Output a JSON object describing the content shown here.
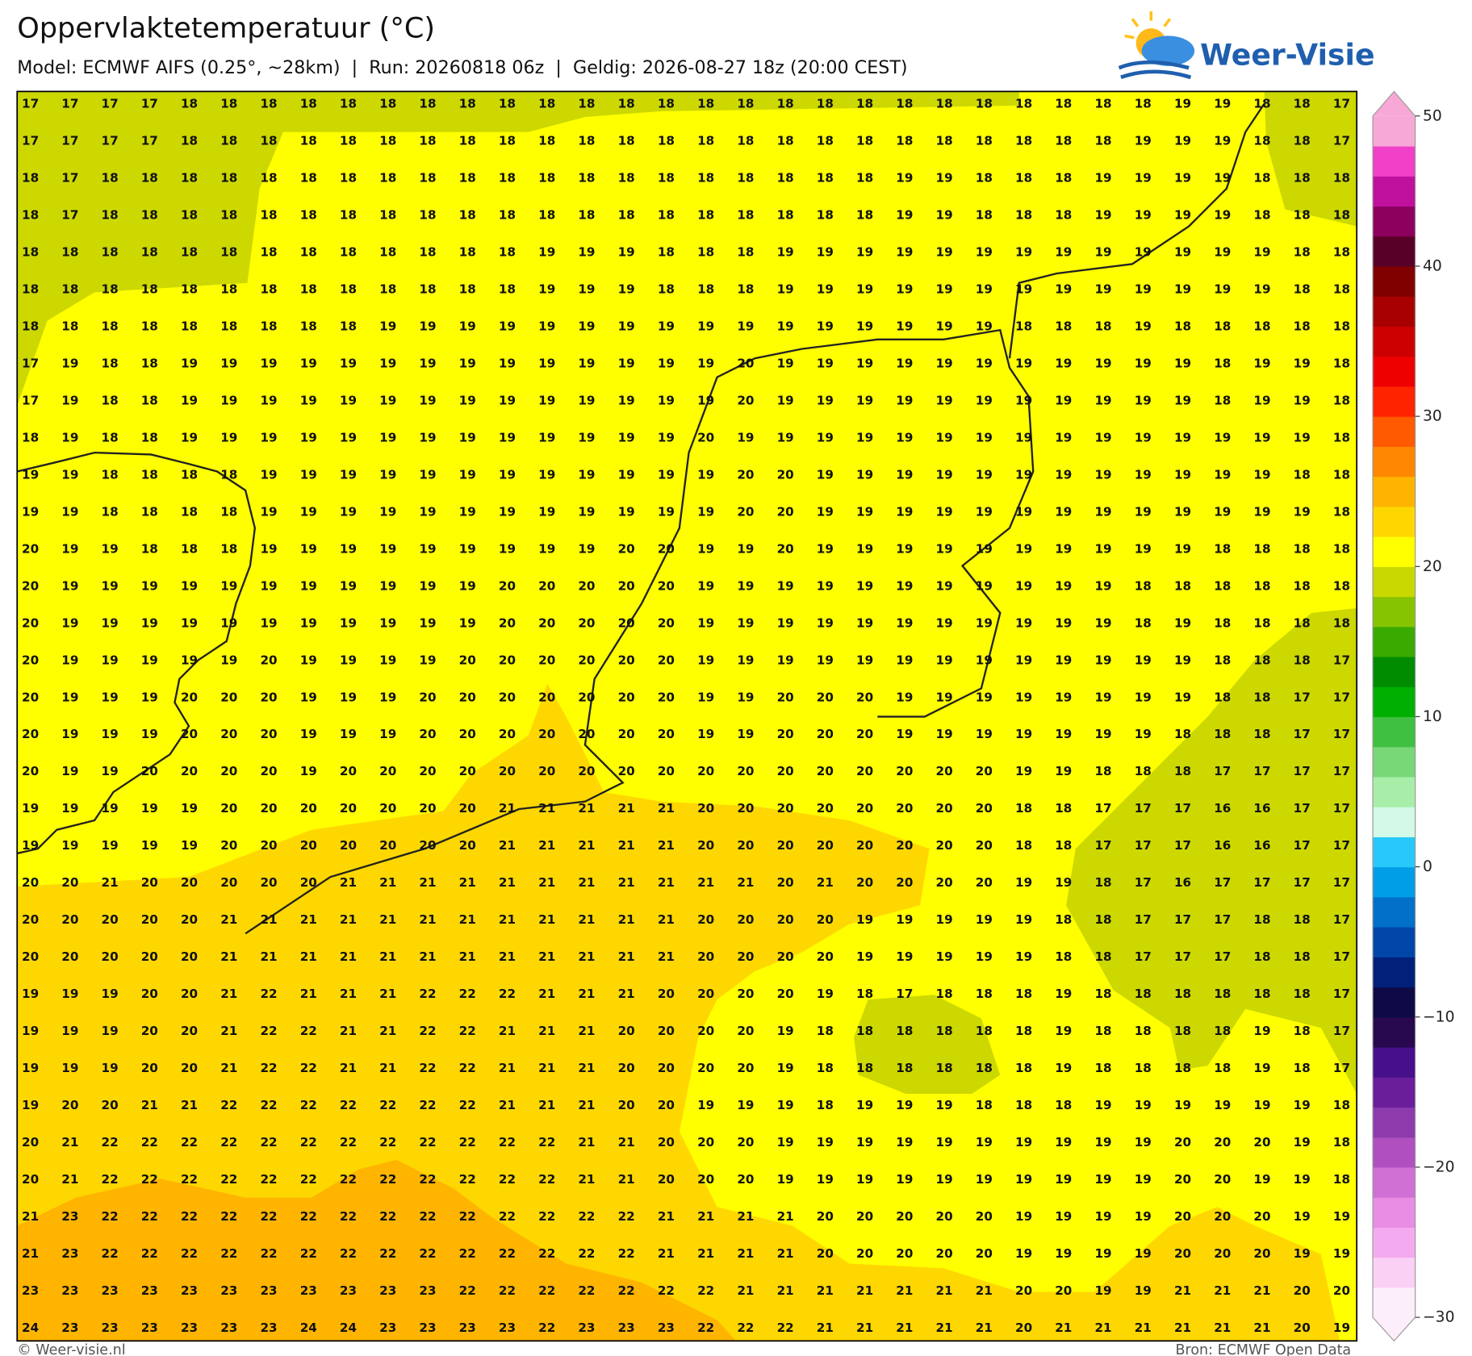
{
  "header": {
    "title": "Oppervlaktetemperatuur (°C)",
    "subtitle": "Model: ECMWF AIFS (0.25°, ~28km)  |  Run: 20260818 06z  |  Geldig: 2026-08-27 18z (20:00 CEST)",
    "logo": "Weer-Visie"
  },
  "footer": {
    "left": "© Weer-visie.nl",
    "right": "Bron: ECMWF Open Data"
  },
  "colorbar": {
    "lim": [
      -30,
      50
    ],
    "ticks": [
      50,
      40,
      30,
      20,
      10,
      0,
      {
        "value": -10,
        "label": "−10"
      },
      {
        "value": -20,
        "label": "−20"
      },
      {
        "value": -30,
        "label": "−30"
      }
    ],
    "colors": [
      "#fdeefc",
      "#fbd0f5",
      "#f4aaee",
      "#e88ce4",
      "#d070d4",
      "#b050c0",
      "#8c3aac",
      "#6a1e9a",
      "#46108a",
      "#28094f",
      "#0e0a48",
      "#00207a",
      "#0046a8",
      "#0070c8",
      "#009ee6",
      "#28c8fa",
      "#d2fae6",
      "#a8eea8",
      "#78d878",
      "#40c040",
      "#00b000",
      "#008c00",
      "#3aaa00",
      "#86c400",
      "#c8d800",
      "#ffff00",
      "#ffd700",
      "#ffb400",
      "#ff8800",
      "#ff5a00",
      "#ff2400",
      "#ee0000",
      "#cc0000",
      "#a80000",
      "#800000",
      "#580028",
      "#8c005e",
      "#c0109e",
      "#f040c8",
      "#f8a8d6"
    ]
  },
  "grid": {
    "rows": [
      [
        17,
        17,
        17,
        17,
        18,
        18,
        18,
        18,
        18,
        18,
        18,
        18,
        18,
        18,
        18,
        18,
        18,
        18,
        18,
        18,
        18,
        18,
        18,
        18,
        18,
        18,
        18,
        18,
        18,
        19,
        19,
        18,
        18,
        17
      ],
      [
        17,
        17,
        17,
        17,
        18,
        18,
        18,
        18,
        18,
        18,
        18,
        18,
        18,
        18,
        18,
        18,
        18,
        18,
        18,
        18,
        18,
        18,
        18,
        18,
        18,
        18,
        18,
        18,
        19,
        19,
        19,
        18,
        18,
        17
      ],
      [
        18,
        17,
        18,
        18,
        18,
        18,
        18,
        18,
        18,
        18,
        18,
        18,
        18,
        18,
        18,
        18,
        18,
        18,
        18,
        18,
        18,
        18,
        19,
        19,
        18,
        18,
        18,
        19,
        19,
        19,
        19,
        18,
        18,
        18
      ],
      [
        18,
        17,
        18,
        18,
        18,
        18,
        18,
        18,
        18,
        18,
        18,
        18,
        18,
        18,
        18,
        18,
        18,
        18,
        18,
        18,
        18,
        18,
        19,
        19,
        18,
        18,
        18,
        19,
        19,
        19,
        19,
        18,
        18,
        18
      ],
      [
        18,
        18,
        18,
        18,
        18,
        18,
        18,
        18,
        18,
        18,
        18,
        18,
        18,
        19,
        19,
        19,
        18,
        18,
        18,
        19,
        19,
        19,
        19,
        19,
        19,
        19,
        19,
        19,
        19,
        19,
        19,
        19,
        18,
        18
      ],
      [
        18,
        18,
        18,
        18,
        18,
        18,
        18,
        18,
        18,
        18,
        18,
        18,
        18,
        19,
        19,
        19,
        18,
        18,
        18,
        19,
        19,
        19,
        19,
        19,
        19,
        19,
        19,
        19,
        19,
        19,
        19,
        19,
        18,
        18
      ],
      [
        18,
        18,
        18,
        18,
        18,
        18,
        18,
        18,
        18,
        19,
        19,
        19,
        19,
        19,
        19,
        19,
        19,
        19,
        19,
        19,
        19,
        19,
        19,
        19,
        19,
        18,
        18,
        18,
        19,
        18,
        18,
        18,
        18,
        18
      ],
      [
        17,
        19,
        18,
        18,
        19,
        19,
        19,
        19,
        19,
        19,
        19,
        19,
        19,
        19,
        19,
        19,
        19,
        19,
        20,
        19,
        19,
        19,
        19,
        19,
        19,
        19,
        19,
        19,
        19,
        19,
        18,
        19,
        19,
        18
      ],
      [
        17,
        19,
        18,
        18,
        19,
        19,
        19,
        19,
        19,
        19,
        19,
        19,
        19,
        19,
        19,
        19,
        19,
        19,
        20,
        19,
        19,
        19,
        19,
        19,
        19,
        19,
        19,
        19,
        19,
        19,
        18,
        19,
        19,
        18
      ],
      [
        18,
        19,
        18,
        18,
        19,
        19,
        19,
        19,
        19,
        19,
        19,
        19,
        19,
        19,
        19,
        19,
        19,
        20,
        19,
        19,
        19,
        19,
        19,
        19,
        19,
        19,
        19,
        19,
        19,
        19,
        19,
        19,
        19,
        18
      ],
      [
        19,
        19,
        18,
        18,
        18,
        18,
        19,
        19,
        19,
        19,
        19,
        19,
        19,
        19,
        19,
        19,
        19,
        19,
        20,
        20,
        19,
        19,
        19,
        19,
        19,
        19,
        19,
        19,
        19,
        19,
        19,
        19,
        18,
        18
      ],
      [
        19,
        19,
        18,
        18,
        18,
        18,
        19,
        19,
        19,
        19,
        19,
        19,
        19,
        19,
        19,
        19,
        19,
        19,
        20,
        20,
        19,
        19,
        19,
        19,
        19,
        19,
        19,
        19,
        19,
        19,
        19,
        19,
        19,
        18
      ],
      [
        20,
        19,
        19,
        18,
        18,
        18,
        19,
        19,
        19,
        19,
        19,
        19,
        19,
        19,
        19,
        20,
        20,
        19,
        19,
        20,
        19,
        19,
        19,
        19,
        19,
        19,
        19,
        19,
        19,
        19,
        18,
        18,
        18,
        18
      ],
      [
        20,
        19,
        19,
        19,
        19,
        19,
        19,
        19,
        19,
        19,
        19,
        19,
        20,
        20,
        20,
        20,
        20,
        19,
        19,
        19,
        19,
        19,
        19,
        19,
        19,
        19,
        19,
        19,
        18,
        18,
        18,
        18,
        18,
        18
      ],
      [
        20,
        19,
        19,
        19,
        19,
        19,
        19,
        19,
        19,
        19,
        19,
        19,
        20,
        20,
        20,
        20,
        20,
        19,
        19,
        19,
        19,
        19,
        19,
        19,
        19,
        19,
        19,
        19,
        18,
        19,
        18,
        18,
        18,
        18
      ],
      [
        20,
        19,
        19,
        19,
        19,
        19,
        20,
        19,
        19,
        19,
        19,
        20,
        20,
        20,
        20,
        20,
        20,
        19,
        19,
        19,
        19,
        19,
        19,
        19,
        19,
        19,
        19,
        19,
        19,
        19,
        18,
        18,
        18,
        17
      ],
      [
        20,
        19,
        19,
        19,
        20,
        20,
        20,
        19,
        19,
        19,
        20,
        20,
        20,
        20,
        20,
        20,
        20,
        19,
        19,
        20,
        20,
        20,
        19,
        19,
        19,
        19,
        19,
        19,
        19,
        19,
        18,
        18,
        17,
        17
      ],
      [
        20,
        19,
        19,
        19,
        20,
        20,
        20,
        19,
        19,
        19,
        20,
        20,
        20,
        20,
        20,
        20,
        20,
        19,
        19,
        20,
        20,
        20,
        19,
        19,
        19,
        19,
        19,
        19,
        19,
        18,
        18,
        18,
        17,
        17
      ],
      [
        20,
        19,
        19,
        20,
        20,
        20,
        20,
        19,
        20,
        20,
        20,
        20,
        20,
        20,
        20,
        20,
        20,
        20,
        20,
        20,
        20,
        20,
        20,
        20,
        20,
        19,
        19,
        18,
        18,
        18,
        17,
        17,
        17,
        17
      ],
      [
        19,
        19,
        19,
        19,
        19,
        20,
        20,
        20,
        20,
        20,
        20,
        20,
        21,
        21,
        21,
        21,
        21,
        20,
        20,
        20,
        20,
        20,
        20,
        20,
        20,
        18,
        18,
        17,
        17,
        17,
        16,
        16,
        17,
        17
      ],
      [
        19,
        19,
        19,
        19,
        19,
        20,
        20,
        20,
        20,
        20,
        20,
        20,
        21,
        21,
        21,
        21,
        21,
        20,
        20,
        20,
        20,
        20,
        20,
        20,
        20,
        18,
        18,
        17,
        17,
        17,
        16,
        16,
        17,
        17
      ],
      [
        20,
        20,
        21,
        20,
        20,
        20,
        20,
        20,
        21,
        21,
        21,
        21,
        21,
        21,
        21,
        21,
        21,
        21,
        21,
        20,
        21,
        20,
        20,
        20,
        20,
        19,
        19,
        18,
        17,
        16,
        17,
        17,
        17,
        17
      ],
      [
        20,
        20,
        20,
        20,
        20,
        21,
        21,
        21,
        21,
        21,
        21,
        21,
        21,
        21,
        21,
        21,
        21,
        20,
        20,
        20,
        20,
        19,
        19,
        19,
        19,
        19,
        18,
        18,
        17,
        17,
        17,
        18,
        18,
        17
      ],
      [
        20,
        20,
        20,
        20,
        20,
        21,
        21,
        21,
        21,
        21,
        21,
        21,
        21,
        21,
        21,
        21,
        21,
        20,
        20,
        20,
        20,
        19,
        19,
        19,
        19,
        19,
        18,
        18,
        17,
        17,
        17,
        18,
        18,
        17
      ],
      [
        19,
        19,
        19,
        20,
        20,
        21,
        22,
        21,
        21,
        21,
        22,
        22,
        22,
        21,
        21,
        21,
        20,
        20,
        20,
        20,
        19,
        18,
        17,
        18,
        18,
        18,
        19,
        18,
        18,
        18,
        18,
        18,
        18,
        17
      ],
      [
        19,
        19,
        19,
        20,
        20,
        21,
        22,
        22,
        21,
        21,
        22,
        22,
        21,
        21,
        21,
        20,
        20,
        20,
        20,
        19,
        18,
        18,
        18,
        18,
        18,
        18,
        19,
        18,
        18,
        18,
        18,
        19,
        18,
        17
      ],
      [
        19,
        19,
        19,
        20,
        20,
        21,
        22,
        22,
        21,
        21,
        22,
        22,
        21,
        21,
        21,
        20,
        20,
        20,
        20,
        19,
        18,
        18,
        18,
        18,
        18,
        18,
        19,
        18,
        18,
        18,
        18,
        19,
        18,
        17
      ],
      [
        19,
        20,
        20,
        21,
        21,
        22,
        22,
        22,
        22,
        22,
        22,
        22,
        21,
        21,
        21,
        20,
        20,
        19,
        19,
        19,
        18,
        19,
        19,
        19,
        18,
        18,
        18,
        19,
        19,
        19,
        19,
        19,
        19,
        18
      ],
      [
        20,
        21,
        22,
        22,
        22,
        22,
        22,
        22,
        22,
        22,
        22,
        22,
        22,
        22,
        21,
        21,
        20,
        20,
        20,
        19,
        19,
        19,
        19,
        19,
        19,
        19,
        19,
        19,
        19,
        20,
        20,
        20,
        19,
        18
      ],
      [
        20,
        21,
        22,
        22,
        22,
        22,
        22,
        22,
        22,
        22,
        22,
        22,
        22,
        22,
        21,
        21,
        20,
        20,
        20,
        19,
        19,
        19,
        19,
        19,
        19,
        19,
        19,
        19,
        19,
        20,
        20,
        19,
        19,
        18
      ],
      [
        21,
        23,
        22,
        22,
        22,
        22,
        22,
        22,
        22,
        22,
        22,
        22,
        22,
        22,
        22,
        22,
        21,
        21,
        21,
        21,
        20,
        20,
        20,
        20,
        20,
        19,
        19,
        19,
        19,
        20,
        20,
        20,
        19,
        19
      ],
      [
        21,
        23,
        22,
        22,
        22,
        22,
        22,
        22,
        22,
        22,
        22,
        22,
        22,
        22,
        22,
        22,
        21,
        21,
        21,
        21,
        20,
        20,
        20,
        20,
        20,
        19,
        19,
        19,
        19,
        20,
        20,
        20,
        19,
        19
      ],
      [
        23,
        23,
        23,
        23,
        23,
        23,
        23,
        23,
        23,
        23,
        23,
        22,
        22,
        22,
        22,
        22,
        22,
        22,
        21,
        21,
        21,
        21,
        21,
        21,
        21,
        20,
        20,
        19,
        19,
        21,
        21,
        21,
        20,
        20
      ],
      [
        24,
        23,
        23,
        23,
        23,
        23,
        23,
        24,
        24,
        23,
        23,
        23,
        23,
        22,
        23,
        23,
        23,
        22,
        22,
        22,
        21,
        21,
        21,
        21,
        21,
        20,
        21,
        21,
        21,
        21,
        21,
        21,
        20,
        19
      ]
    ]
  }
}
